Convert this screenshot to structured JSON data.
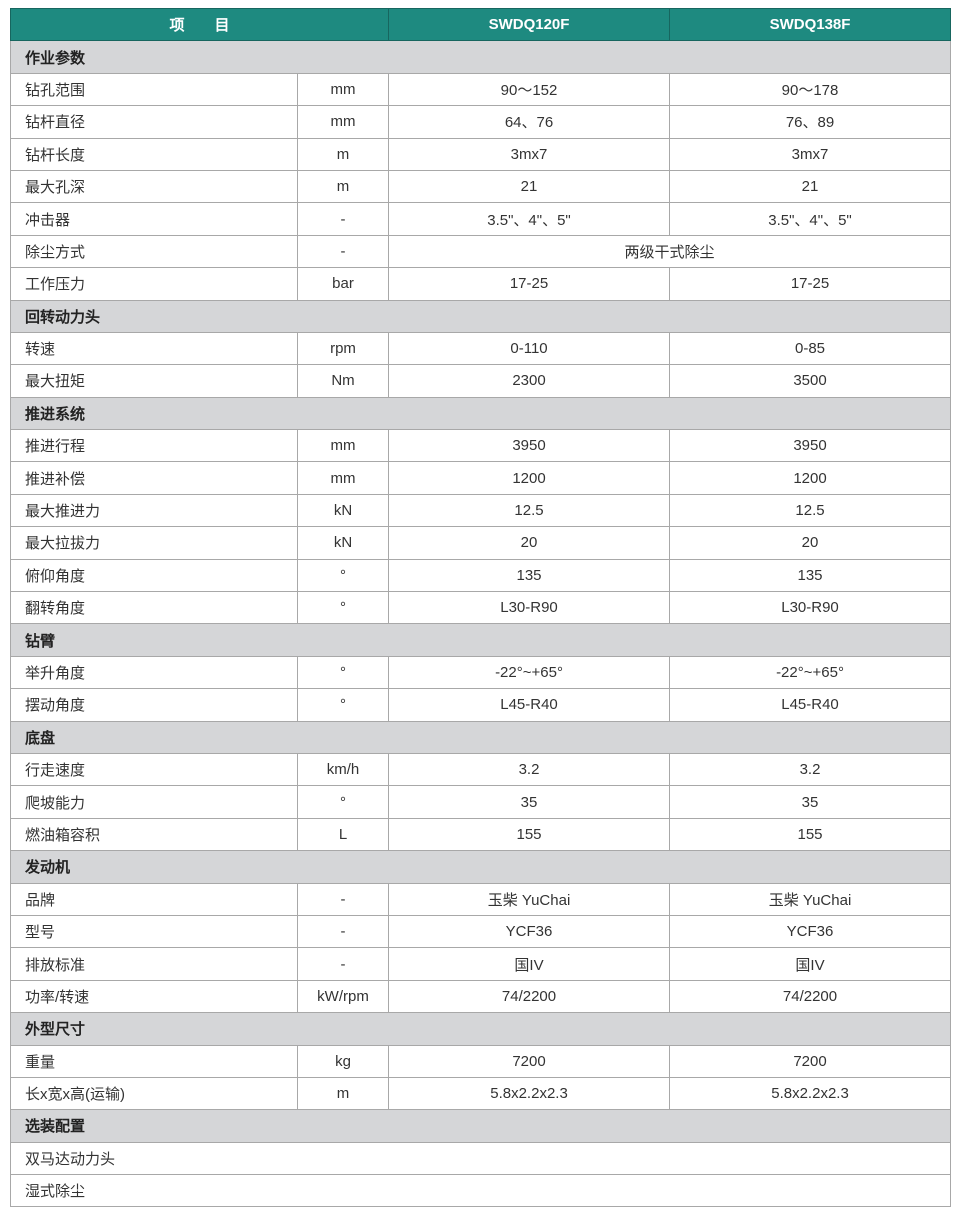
{
  "header": {
    "item": "项　　目",
    "models": [
      "SWDQ120F",
      "SWDQ138F"
    ]
  },
  "sections": [
    {
      "title": "作业参数",
      "rows": [
        {
          "label": "钻孔范围",
          "unit": "mm",
          "v1": "90～152",
          "v2": "90～178"
        },
        {
          "label": "钻杆直径",
          "unit": "mm",
          "v1": "64、76",
          "v2": "76、89"
        },
        {
          "label": "钻杆长度",
          "unit": "m",
          "v1": "3mx7",
          "v2": "3mx7"
        },
        {
          "label": "最大孔深",
          "unit": "m",
          "v1": "21",
          "v2": "21"
        },
        {
          "label": "冲击器",
          "unit": "-",
          "v1": "3.5\"、4\"、5\"",
          "v2": "3.5\"、4\"、5\""
        },
        {
          "label": "除尘方式",
          "unit": "-",
          "merged": "两级干式除尘"
        },
        {
          "label": "工作压力",
          "unit": "bar",
          "v1": "17-25",
          "v2": "17-25"
        }
      ]
    },
    {
      "title": "回转动力头",
      "rows": [
        {
          "label": "转速",
          "unit": "rpm",
          "v1": "0-110",
          "v2": "0-85"
        },
        {
          "label": "最大扭矩",
          "unit": "Nm",
          "v1": "2300",
          "v2": "3500"
        }
      ]
    },
    {
      "title": "推进系统",
      "rows": [
        {
          "label": "推进行程",
          "unit": "mm",
          "v1": "3950",
          "v2": "3950"
        },
        {
          "label": "推进补偿",
          "unit": "mm",
          "v1": "1200",
          "v2": "1200"
        },
        {
          "label": "最大推进力",
          "unit": "kN",
          "v1": "12.5",
          "v2": "12.5"
        },
        {
          "label": "最大拉拔力",
          "unit": "kN",
          "v1": "20",
          "v2": "20"
        },
        {
          "label": "俯仰角度",
          "unit": "°",
          "v1": "135",
          "v2": "135"
        },
        {
          "label": "翻转角度",
          "unit": "°",
          "v1": "L30-R90",
          "v2": "L30-R90"
        }
      ]
    },
    {
      "title": "钻臂",
      "rows": [
        {
          "label": "举升角度",
          "unit": "°",
          "v1": "-22°~+65°",
          "v2": "-22°~+65°"
        },
        {
          "label": "摆动角度",
          "unit": "°",
          "v1": "L45-R40",
          "v2": "L45-R40"
        }
      ]
    },
    {
      "title": "底盘",
      "rows": [
        {
          "label": "行走速度",
          "unit": "km/h",
          "v1": "3.2",
          "v2": "3.2"
        },
        {
          "label": "爬坡能力",
          "unit": "°",
          "v1": "35",
          "v2": "35"
        },
        {
          "label": "燃油箱容积",
          "unit": "L",
          "v1": "155",
          "v2": "155"
        }
      ]
    },
    {
      "title": "发动机",
      "rows": [
        {
          "label": "品牌",
          "unit": "-",
          "v1": "玉柴 YuChai",
          "v2": "玉柴 YuChai"
        },
        {
          "label": "型号",
          "unit": "-",
          "v1": "YCF36",
          "v2": "YCF36"
        },
        {
          "label": "排放标准",
          "unit": "-",
          "v1": "国IV",
          "v2": "国IV"
        },
        {
          "label": "功率/转速",
          "unit": "kW/rpm",
          "v1": "74/2200",
          "v2": "74/2200"
        }
      ]
    },
    {
      "title": "外型尺寸",
      "rows": [
        {
          "label": "重量",
          "unit": "kg",
          "v1": "7200",
          "v2": "7200"
        },
        {
          "label": "长x宽x高(运输)",
          "unit": "m",
          "v1": "5.8x2.2x2.3",
          "v2": "5.8x2.2x2.3"
        }
      ]
    },
    {
      "title": "选装配置",
      "rows": [
        {
          "option": "双马达动力头"
        },
        {
          "option": "湿式除尘"
        }
      ]
    }
  ],
  "colors": {
    "header": "#1e8a80",
    "section": "#d5d6d8"
  }
}
